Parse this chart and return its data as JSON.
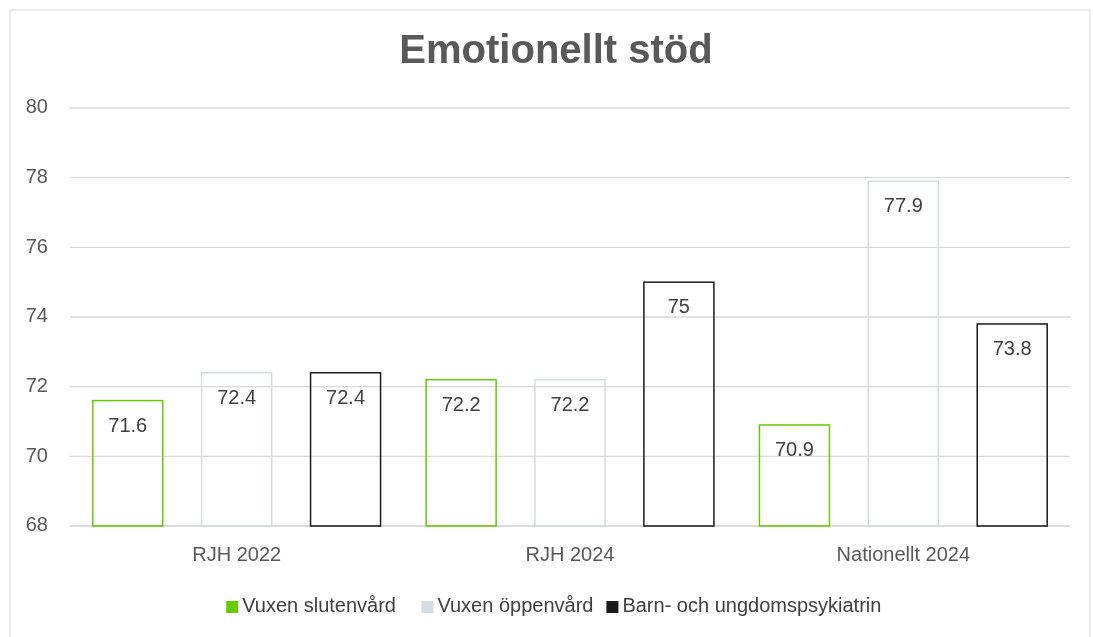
{
  "chart_data": {
    "type": "bar",
    "title": "Emotionellt stöd",
    "categories": [
      "RJH 2022",
      "RJH 2024",
      "Nationellt 2024"
    ],
    "series": [
      {
        "name": "Vuxen slutenvård",
        "color": "#66cc00",
        "values": [
          71.6,
          72.2,
          70.9
        ]
      },
      {
        "name": "Vuxen öppenvård",
        "color": "#d6dce4",
        "values": [
          72.4,
          72.2,
          77.9
        ]
      },
      {
        "name": "Barn- och ungdomspsykiatrin",
        "color": "#1a1a1a",
        "values": [
          72.4,
          75,
          73.8
        ]
      }
    ],
    "ylim": [
      68,
      80
    ],
    "yticks": [
      68,
      70,
      72,
      74,
      76,
      78,
      80
    ],
    "grid": "y",
    "legend": "bottom",
    "data_labels": true
  }
}
